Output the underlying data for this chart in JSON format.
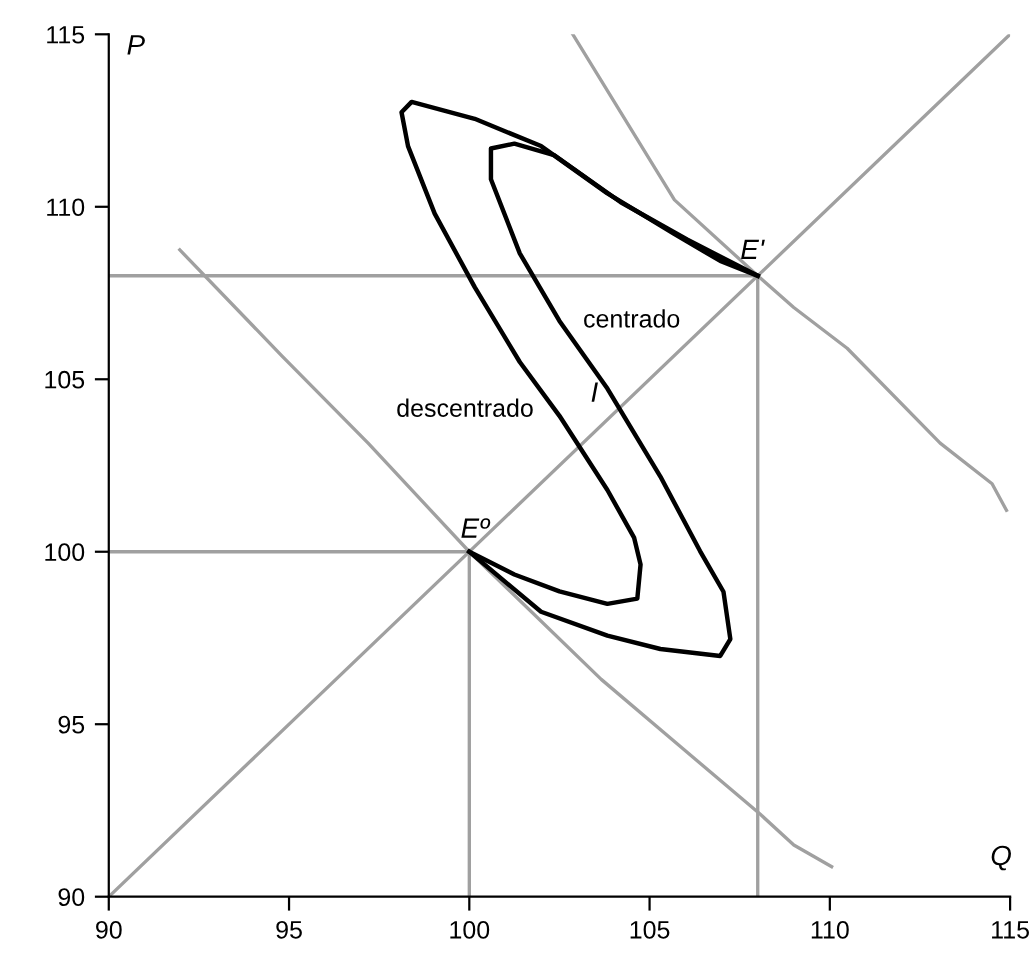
{
  "chart_data": {
    "type": "line",
    "xlim": [
      90,
      115
    ],
    "ylim": [
      90,
      115
    ],
    "xticks": [
      90,
      95,
      100,
      105,
      110,
      115
    ],
    "yticks": [
      90,
      95,
      100,
      105,
      110,
      115
    ],
    "xlabel": "Q",
    "ylabel": "P",
    "grid": false,
    "legend": false,
    "marker": "none",
    "line_style": "solid",
    "series": [
      {
        "color": "#a0a0a0",
        "x": [
          90,
          115
        ],
        "values": [
          90,
          115
        ]
      },
      {
        "color": "#a0a0a0",
        "x": [
          91.97,
          94.8,
          97.2,
          100,
          103.66,
          105.87,
          108.08,
          109.0,
          110.05
        ],
        "values": [
          108.75,
          105.68,
          103.14,
          100,
          96.3,
          94.34,
          92.38,
          91.5,
          90.87
        ]
      },
      {
        "color": "#a0a0a0",
        "x": [
          102.87,
          105.69,
          108,
          109.0,
          110.48,
          113.06,
          114.5,
          114.9
        ],
        "values": [
          115,
          110.2,
          108,
          107.08,
          105.9,
          103.15,
          101.97,
          101.2
        ]
      },
      {
        "color": "#a0a0a0",
        "x": [
          90,
          108,
          108
        ],
        "values": [
          108,
          108,
          90
        ]
      },
      {
        "color": "#a0a0a0",
        "x": [
          90,
          100,
          100
        ],
        "values": [
          100,
          100,
          90
        ]
      },
      {
        "name": "descentrado",
        "color": "#000000",
        "x": [
          100,
          101.25,
          102.5,
          103.83,
          104.66,
          104.75,
          104.57,
          103.83,
          102.5,
          101.4,
          100.15,
          99.04,
          98.3,
          98.12,
          98.4,
          100.15,
          101.99,
          103.83,
          105.67,
          106.96,
          108
        ],
        "values": [
          100,
          99.34,
          98.85,
          98.49,
          98.64,
          99.63,
          100.41,
          101.79,
          103.94,
          105.5,
          107.67,
          109.8,
          111.76,
          112.74,
          113.04,
          112.55,
          111.76,
          110.39,
          109.22,
          108.43,
          108
        ]
      },
      {
        "name": "centrado",
        "color": "#000000",
        "x": [
          100,
          101.99,
          103.83,
          105.3,
          106.96,
          107.24,
          107.05,
          106.4,
          105.3,
          103.83,
          102.5,
          101.4,
          100.6,
          100.6,
          101.25,
          102.35,
          104.2,
          106.04,
          108
        ],
        "values": [
          100,
          98.26,
          97.57,
          97.18,
          96.98,
          97.47,
          98.84,
          100.02,
          102.18,
          104.73,
          106.69,
          108.65,
          110.8,
          111.69,
          111.83,
          111.5,
          110.13,
          109.05,
          108
        ]
      }
    ],
    "annotations": [
      {
        "text": "E'",
        "x": 108,
        "y": 108
      },
      {
        "text": "Eº",
        "x": 100,
        "y": 100
      },
      {
        "text": "I",
        "x": 103.7,
        "y": 103.7
      }
    ]
  }
}
